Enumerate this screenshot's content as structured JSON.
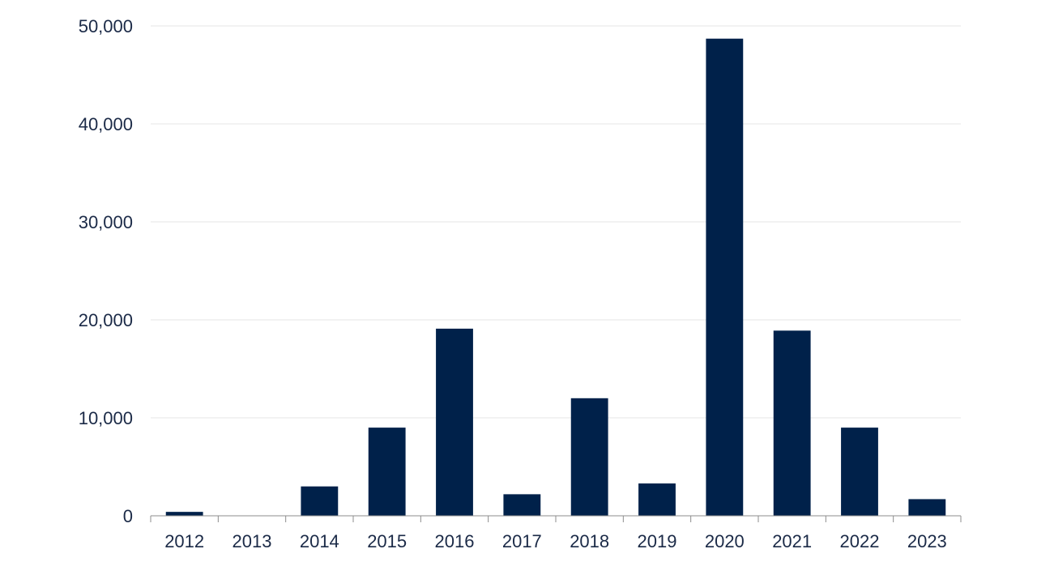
{
  "chart_data": {
    "type": "bar",
    "categories": [
      "2012",
      "2013",
      "2014",
      "2015",
      "2016",
      "2017",
      "2018",
      "2019",
      "2020",
      "2021",
      "2022",
      "2023"
    ],
    "values": [
      400,
      0,
      3000,
      9000,
      19100,
      2200,
      12000,
      3300,
      48700,
      18900,
      9000,
      1700
    ],
    "title": "",
    "xlabel": "",
    "ylabel": "",
    "ylim": [
      0,
      50000
    ],
    "yticks": [
      "0",
      "10,000",
      "20,000",
      "30,000",
      "40,000",
      "50,000"
    ],
    "grid": true,
    "legend": "none",
    "bar_color": "#00214a"
  }
}
